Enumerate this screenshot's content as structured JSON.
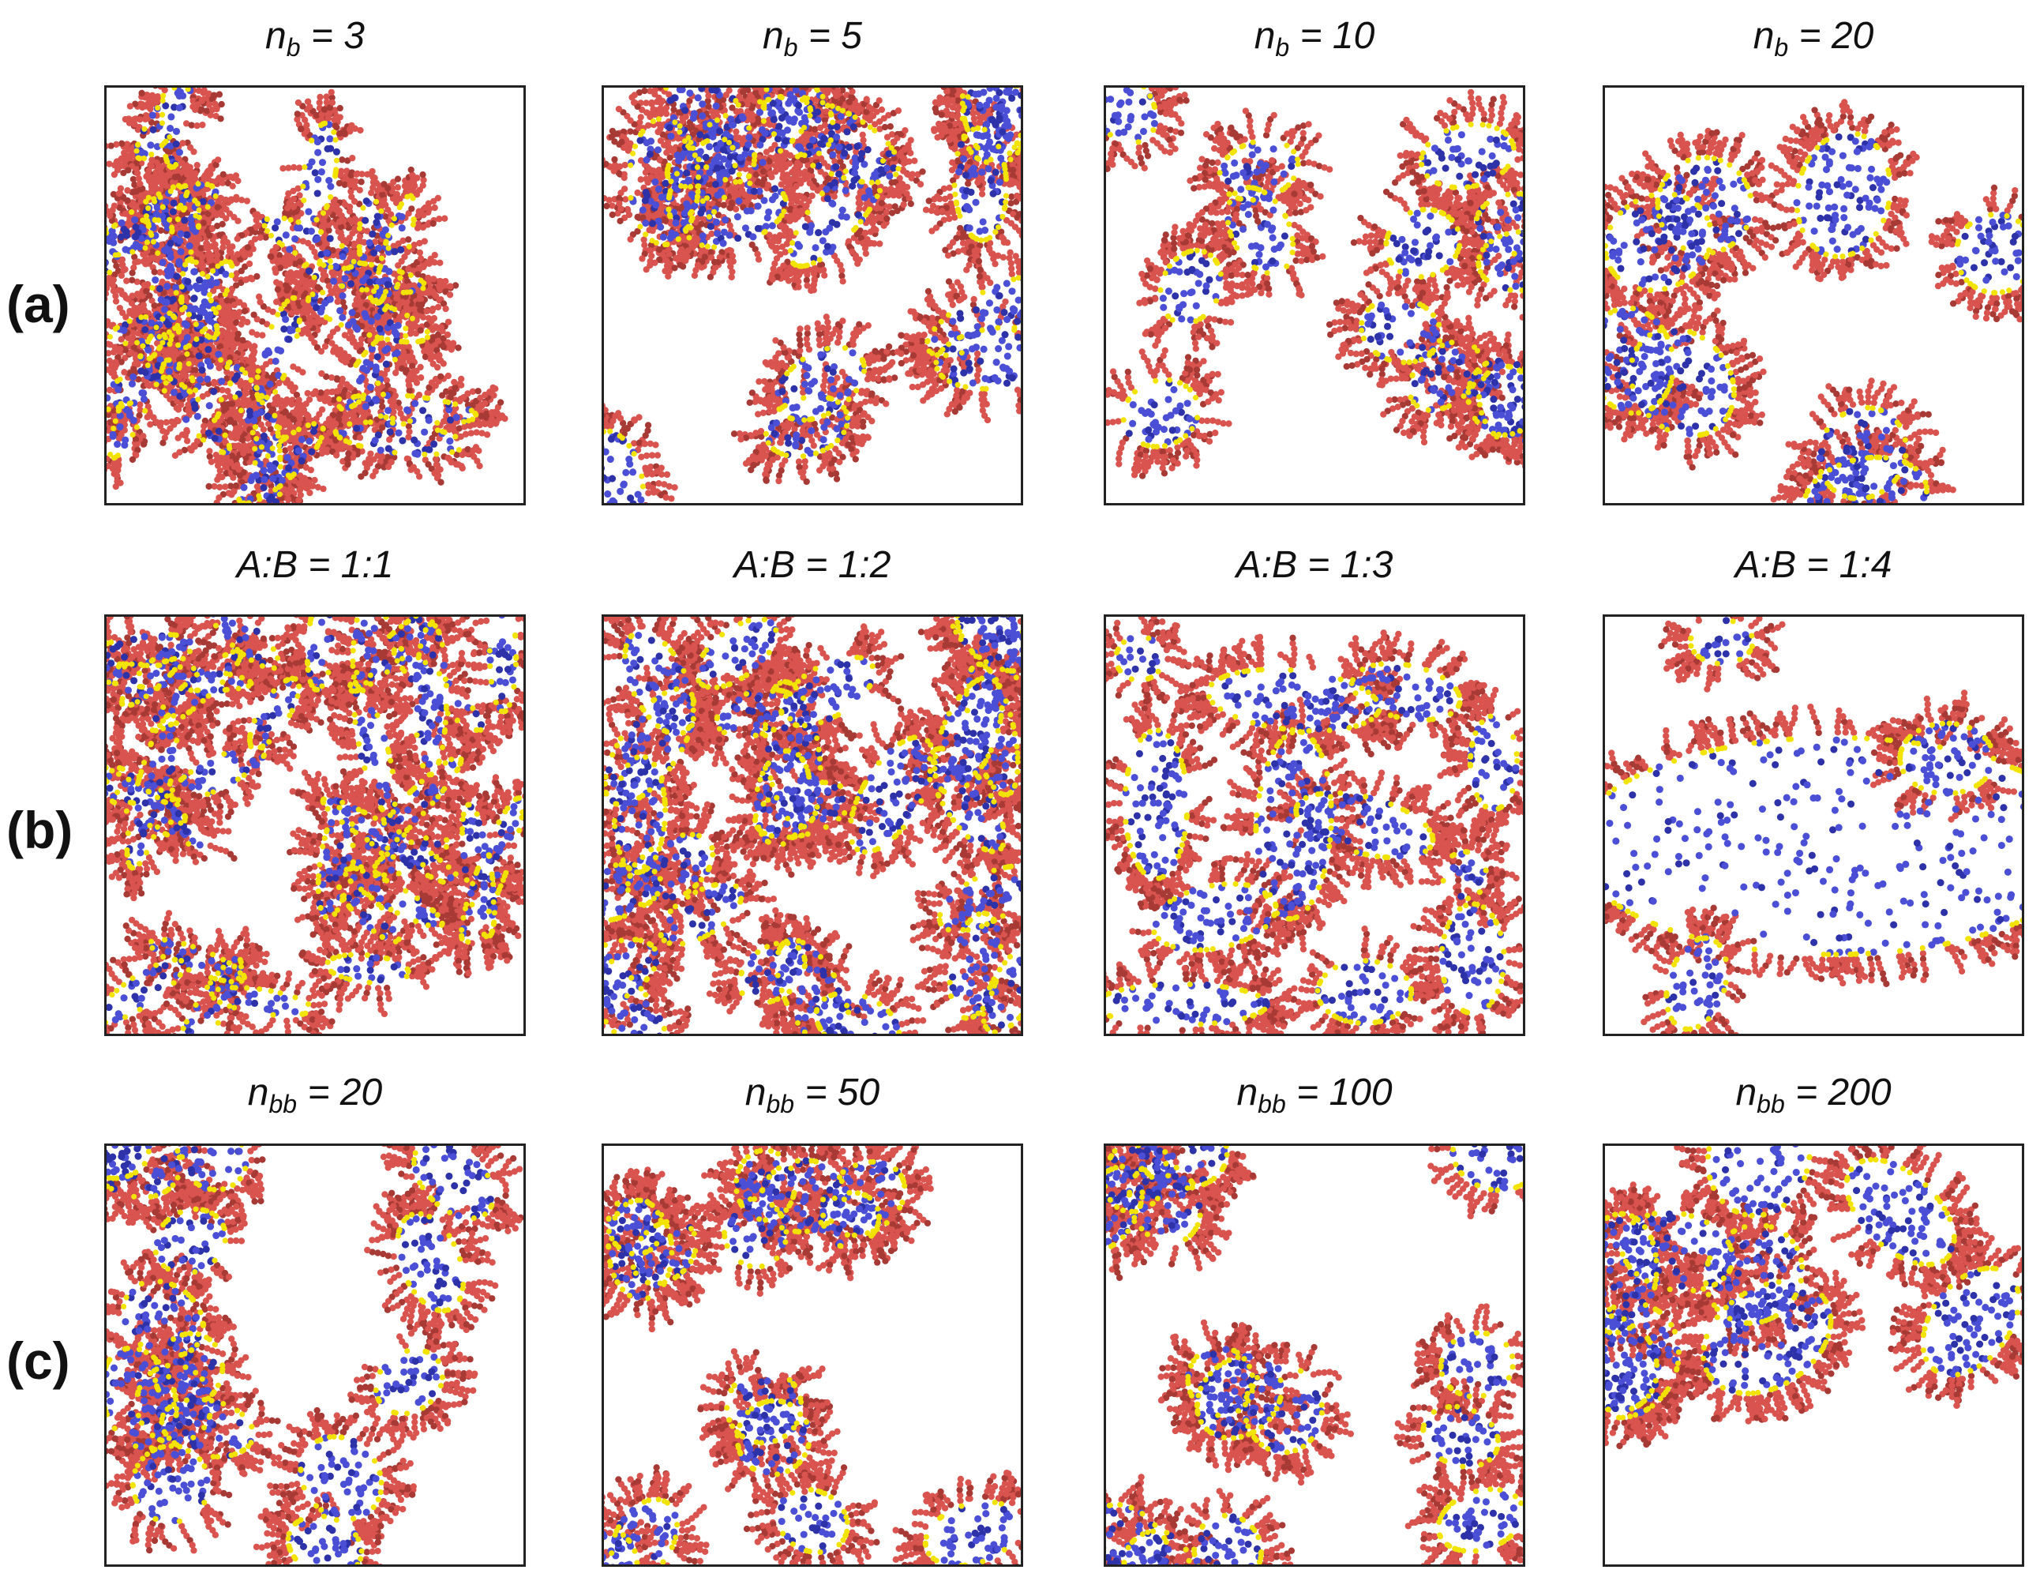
{
  "figure": {
    "rows": [
      {
        "label": "(a)",
        "panels": [
          {
            "title_var": "n",
            "title_sub": "b",
            "title_rest": " = 3",
            "morphology": "worms",
            "seed": 11,
            "blob_count": 26,
            "blob_size": 1.0
          },
          {
            "title_var": "n",
            "title_sub": "b",
            "title_rest": " = 5",
            "morphology": "elongated",
            "seed": 23,
            "blob_count": 16,
            "blob_size": 1.35
          },
          {
            "title_var": "n",
            "title_sub": "b",
            "title_rest": " = 10",
            "morphology": "spheres",
            "seed": 37,
            "blob_count": 13,
            "blob_size": 1.55
          },
          {
            "title_var": "n",
            "title_sub": "b",
            "title_rest": " = 20",
            "morphology": "spheres",
            "seed": 41,
            "blob_count": 8,
            "blob_size": 1.9
          }
        ]
      },
      {
        "label": "(b)",
        "panels": [
          {
            "title_var": "A:B",
            "title_sub": "",
            "title_rest": " = 1:1",
            "morphology": "worms",
            "seed": 53,
            "blob_count": 30,
            "blob_size": 0.95
          },
          {
            "title_var": "A:B",
            "title_sub": "",
            "title_rest": " = 1:2",
            "morphology": "elongated",
            "seed": 61,
            "blob_count": 26,
            "blob_size": 1.15
          },
          {
            "title_var": "A:B",
            "title_sub": "",
            "title_rest": " = 1:3",
            "morphology": "network",
            "seed": 71,
            "blob_count": 18,
            "blob_size": 1.7
          },
          {
            "title_var": "A:B",
            "title_sub": "",
            "title_rest": " = 1:4",
            "morphology": "slab",
            "seed": 83,
            "blob_count": 1,
            "blob_size": 1.0
          }
        ]
      },
      {
        "label": "(c)",
        "panels": [
          {
            "title_var": "n",
            "title_sub": "bb",
            "title_rest": " = 20",
            "morphology": "spheres",
            "seed": 97,
            "blob_count": 15,
            "blob_size": 1.55
          },
          {
            "title_var": "n",
            "title_sub": "bb",
            "title_rest": " = 50",
            "morphology": "spheres",
            "seed": 101,
            "blob_count": 14,
            "blob_size": 1.45
          },
          {
            "title_var": "n",
            "title_sub": "bb",
            "title_rest": " = 100",
            "morphology": "spheres",
            "seed": 113,
            "blob_count": 14,
            "blob_size": 1.5
          },
          {
            "title_var": "n",
            "title_sub": "bb",
            "title_rest": " = 200",
            "morphology": "large-spheres",
            "seed": 127,
            "blob_count": 9,
            "blob_size": 2.1
          }
        ]
      }
    ],
    "colors": {
      "core": "#4a4fd6",
      "core_dark": "#2e32a8",
      "corona": "#d9534f",
      "corona_dark": "#a83a36",
      "interface": "#f2e300",
      "background": "#ffffff",
      "frame": "#222222"
    }
  }
}
